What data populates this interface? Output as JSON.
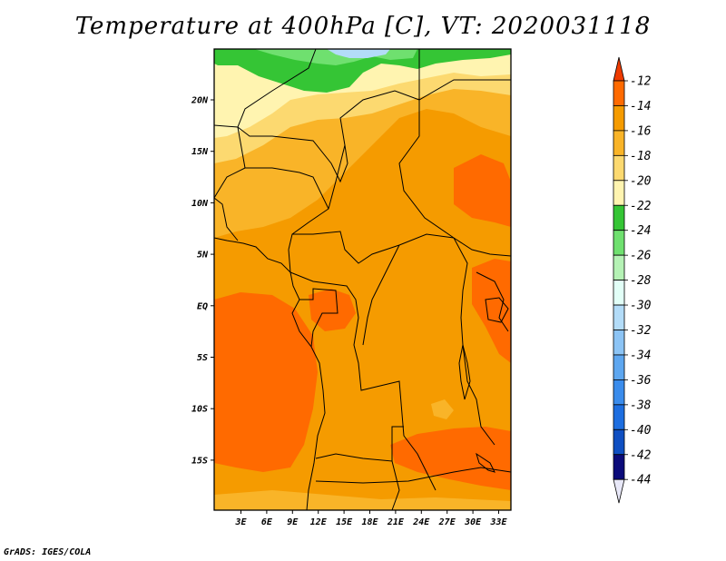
{
  "title": "Temperature at 400hPa [C], VT: 2020031118",
  "footer": "GrADS: IGES/COLA",
  "map": {
    "lat_ticks": [
      "20N",
      "15N",
      "10N",
      "5N",
      "EQ",
      "5S",
      "10S",
      "15S"
    ],
    "lon_ticks": [
      "3E",
      "6E",
      "9E",
      "12E",
      "15E",
      "18E",
      "21E",
      "24E",
      "27E",
      "30E",
      "33E"
    ]
  },
  "colorbar": {
    "labels": [
      "-12",
      "-14",
      "-16",
      "-18",
      "-20",
      "-22",
      "-24",
      "-26",
      "-28",
      "-30",
      "-32",
      "-34",
      "-36",
      "-38",
      "-40",
      "-42",
      "-44"
    ],
    "colors": [
      "#ee3b00",
      "#ff6a00",
      "#f59b00",
      "#f9b428",
      "#fcd970",
      "#fff4b0",
      "#35c535",
      "#6fe06f",
      "#b5f2b5",
      "#e2fff7",
      "#b3dcf8",
      "#8cc4f5",
      "#5ea7f0",
      "#3a8cec",
      "#1d6ee0",
      "#0f4fc2",
      "#0b0b7a"
    ],
    "top_arrow_color": "#ee3b00",
    "bottom_arrow_color": "#e8e8f8"
  },
  "palette": {
    "base": "#f59b00",
    "warm": "#ff6a00",
    "light_orange": "#f9b428",
    "pale_yellow": "#fcd970",
    "cream": "#fff4b0",
    "green": "#35c535",
    "light_green": "#6fe06f",
    "pale_blue": "#b3dcf8"
  }
}
